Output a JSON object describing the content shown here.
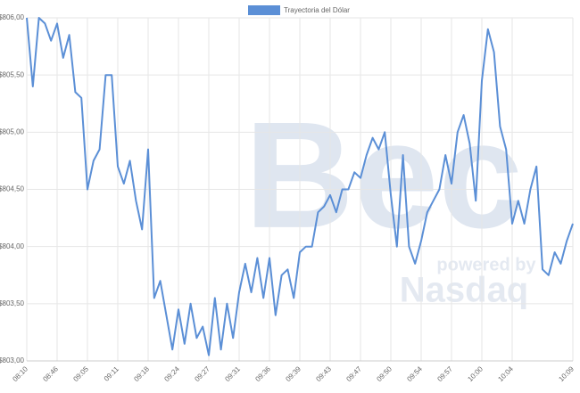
{
  "chart_data": {
    "type": "line",
    "annotations": [
      "Bec",
      "powered by",
      "Nasdaq"
    ],
    "categories": [
      "08:10",
      null,
      null,
      null,
      null,
      "08:46",
      null,
      null,
      null,
      null,
      "09:05",
      null,
      null,
      null,
      null,
      "09:11",
      null,
      null,
      null,
      null,
      "09:18",
      null,
      null,
      null,
      null,
      "09:24",
      null,
      null,
      null,
      null,
      "09:27",
      null,
      null,
      null,
      null,
      "09:31",
      null,
      null,
      null,
      null,
      "09:36",
      null,
      null,
      null,
      null,
      "09:39",
      null,
      null,
      null,
      null,
      "09:43",
      null,
      null,
      null,
      null,
      "09:47",
      null,
      null,
      null,
      null,
      "09:50",
      null,
      null,
      null,
      null,
      "09:54",
      null,
      null,
      null,
      null,
      "09:57",
      null,
      null,
      null,
      null,
      "10:00",
      null,
      null,
      null,
      null,
      "10:04",
      null,
      null,
      null,
      null,
      null,
      null,
      null,
      null,
      null,
      "10:09"
    ],
    "series": [
      {
        "name": "Trayectoria del Dólar",
        "color": "#5b8fd6",
        "values": [
          806.0,
          805.4,
          806.0,
          805.95,
          805.8,
          805.95,
          805.65,
          805.85,
          805.35,
          805.3,
          804.5,
          804.75,
          804.85,
          805.5,
          805.5,
          804.7,
          804.55,
          804.75,
          804.4,
          804.15,
          804.85,
          803.55,
          803.7,
          803.4,
          803.1,
          803.45,
          803.15,
          803.5,
          803.2,
          803.3,
          803.05,
          803.55,
          803.1,
          803.5,
          803.2,
          803.6,
          803.85,
          803.6,
          803.9,
          803.55,
          803.9,
          803.4,
          803.75,
          803.8,
          803.55,
          803.95,
          804.0,
          804.0,
          804.3,
          804.35,
          804.45,
          804.3,
          804.5,
          804.5,
          804.65,
          804.6,
          804.8,
          804.95,
          804.85,
          805.0,
          804.45,
          804.0,
          804.8,
          804.0,
          803.85,
          804.05,
          804.3,
          804.4,
          804.5,
          804.8,
          804.55,
          805.0,
          805.15,
          804.9,
          804.4,
          805.45,
          805.9,
          805.7,
          805.05,
          804.85,
          804.2,
          804.4,
          804.2,
          804.5,
          804.7,
          803.8,
          803.75,
          803.95,
          803.85,
          804.05,
          804.2
        ]
      }
    ],
    "ylim": [
      803,
      806
    ],
    "yticks": [
      {
        "value": 803,
        "label": "$803,00"
      },
      {
        "value": 803.5,
        "label": "$803,50"
      },
      {
        "value": 804,
        "label": "$804,00"
      },
      {
        "value": 804.5,
        "label": "$804,50"
      },
      {
        "value": 805,
        "label": "$805,00"
      },
      {
        "value": 805.5,
        "label": "$805,50"
      },
      {
        "value": 806,
        "label": "$806,00"
      }
    ],
    "grid": true,
    "legend": "top"
  }
}
